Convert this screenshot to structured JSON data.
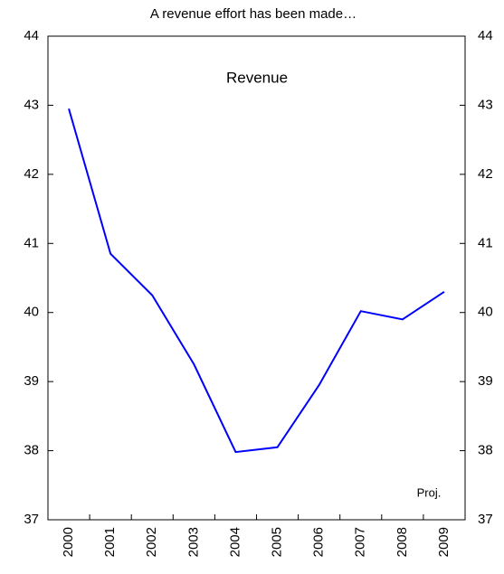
{
  "chart_data": {
    "type": "line",
    "title": "A revenue effort has been made…",
    "annotations": [
      "Revenue",
      "Proj."
    ],
    "categories": [
      "2000",
      "2001",
      "2002",
      "2003",
      "2004",
      "2005",
      "2006",
      "2007",
      "2008",
      "2009"
    ],
    "series": [
      {
        "name": "Revenue",
        "color": "#0000ff",
        "values": [
          42.95,
          40.85,
          40.25,
          39.25,
          37.98,
          38.05,
          38.95,
          40.02,
          39.9,
          40.3
        ]
      }
    ],
    "ylim": [
      37,
      44
    ],
    "yticks": [
      37,
      38,
      39,
      40,
      41,
      42,
      43,
      44
    ],
    "y2lim": [
      37,
      44
    ],
    "y2ticks": [
      37,
      38,
      39,
      40,
      41,
      42,
      43,
      44
    ],
    "grid": false
  }
}
